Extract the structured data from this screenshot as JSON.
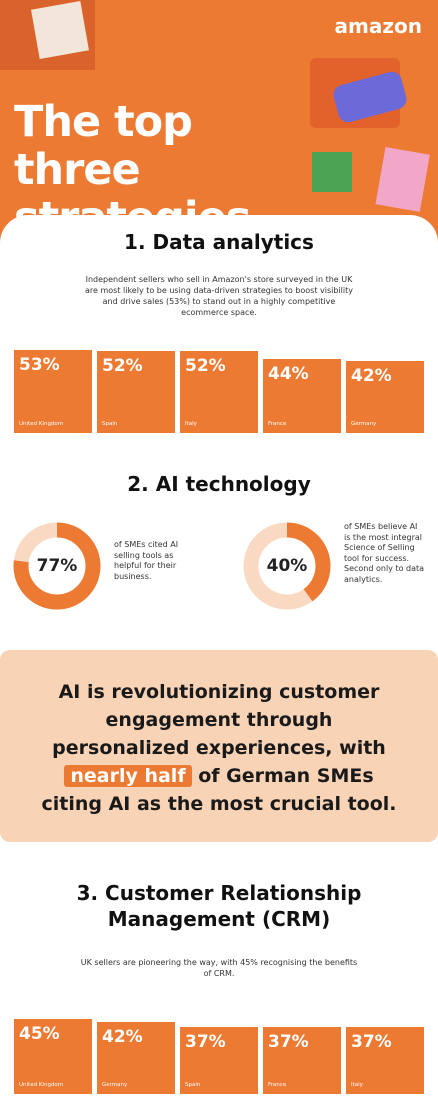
{
  "header": {
    "logo": "amazon",
    "title": "The top three strategies"
  },
  "sections": [
    {
      "heading": "1. Data analytics",
      "text": "Independent sellers who sell in Amazon's store surveyed in the UK are most likely to be using data-driven strategies to boost visibility and drive sales (53%) to stand out in a highly competitive ecommerce space.",
      "tiles": [
        {
          "value": 53,
          "label": "53%",
          "country": "United Kingdom"
        },
        {
          "value": 52,
          "label": "52%",
          "country": "Spain"
        },
        {
          "value": 52,
          "label": "52%",
          "country": "Italy"
        },
        {
          "value": 44,
          "label": "44%",
          "country": "France"
        },
        {
          "value": 42,
          "label": "42%",
          "country": "Germany"
        }
      ]
    },
    {
      "heading": "2. AI technology",
      "donuts": [
        {
          "value": 77,
          "label": "77%",
          "text": "of SMEs cited AI selling tools as helpful for their business."
        },
        {
          "value": 40,
          "label": "40%",
          "text": "of SMEs believe AI is the most integral Science of Selling tool for success. Second only to data analytics."
        }
      ]
    },
    {
      "heading": "3. Customer Relationship Management (CRM)",
      "text": "UK sellers are pioneering the way, with 45% recognising the benefits of CRM.",
      "tiles": [
        {
          "value": 45,
          "label": "45%",
          "country": "United Kingdom"
        },
        {
          "value": 42,
          "label": "42%",
          "country": "Germany"
        },
        {
          "value": 37,
          "label": "37%",
          "country": "Spain"
        },
        {
          "value": 37,
          "label": "37%",
          "country": "France"
        },
        {
          "value": 37,
          "label": "37%",
          "country": "Italy"
        }
      ]
    }
  ],
  "quote": {
    "before": "AI is revolutionizing customer engagement through personalized experiences, with",
    "highlight": "nearly half",
    "after": "of German SMEs citing AI as the most crucial tool."
  }
}
